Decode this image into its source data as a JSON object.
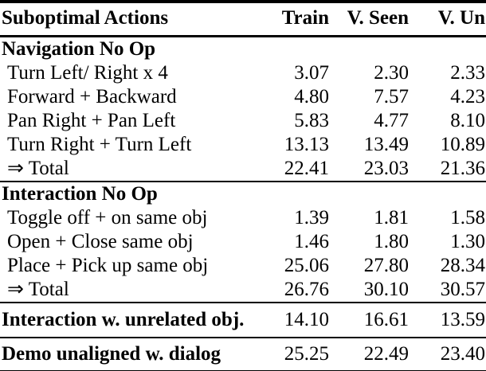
{
  "table": {
    "columns": [
      {
        "label": "Suboptimal Actions"
      },
      {
        "label": "Train"
      },
      {
        "label": "V. Seen"
      },
      {
        "label": "V. Un"
      }
    ],
    "sections": [
      {
        "header": "Navigation No Op",
        "rows": [
          {
            "label": "Turn Left/ Right x 4",
            "values": [
              "3.07",
              "2.30",
              "2.33"
            ]
          },
          {
            "label": "Forward + Backward",
            "values": [
              "4.80",
              "7.57",
              "4.23"
            ]
          },
          {
            "label": "Pan Right + Pan Left",
            "values": [
              "5.83",
              "4.77",
              "8.10"
            ]
          },
          {
            "label": "Turn Right + Turn Left",
            "values": [
              "13.13",
              "13.49",
              "10.89"
            ]
          },
          {
            "label": "⇒ Total",
            "values": [
              "22.41",
              "23.03",
              "21.36"
            ]
          }
        ]
      },
      {
        "header": "Interaction No Op",
        "rows": [
          {
            "label": "Toggle off + on same obj",
            "values": [
              "1.39",
              "1.81",
              "1.58"
            ]
          },
          {
            "label": "Open + Close same obj",
            "values": [
              "1.46",
              "1.80",
              "1.30"
            ]
          },
          {
            "label": "Place + Pick up same obj",
            "values": [
              "25.06",
              "27.80",
              "28.34"
            ]
          },
          {
            "label": "⇒ Total",
            "values": [
              "26.76",
              "30.10",
              "30.57"
            ]
          }
        ]
      }
    ],
    "summary_rows": [
      {
        "label": "Interaction w. unrelated obj.",
        "values": [
          "14.10",
          "16.61",
          "13.59"
        ]
      },
      {
        "label": "Demo unaligned w. dialog",
        "values": [
          "25.25",
          "22.49",
          "23.40"
        ]
      }
    ],
    "colors": {
      "text": "#000000",
      "background": "#ffffff",
      "rule": "#000000"
    }
  }
}
